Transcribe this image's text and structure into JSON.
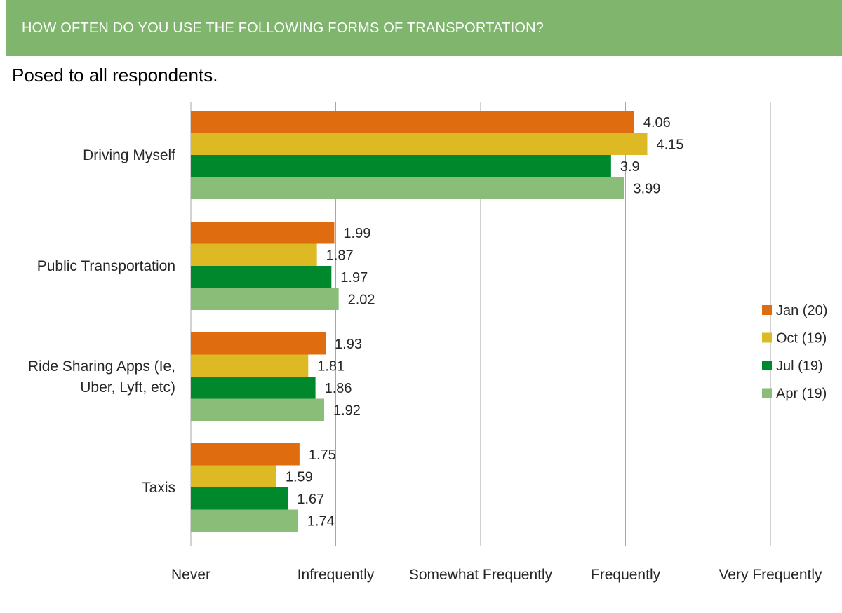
{
  "header": {
    "title": "HOW OFTEN DO YOU USE THE FOLLOWING FORMS OF TRANSPORTATION?",
    "subtitle": "Posed to all respondents."
  },
  "colors": {
    "banner": "#7fb56d",
    "gridline": "#a6a6a6"
  },
  "chart_data": {
    "type": "bar",
    "orientation": "horizontal",
    "categories": [
      [
        "Driving Myself"
      ],
      [
        "Public Transportation"
      ],
      [
        "Ride Sharing Apps (Ie,",
        "Uber, Lyft, etc)"
      ],
      [
        "Taxis"
      ]
    ],
    "series": [
      {
        "name": "Jan (20)",
        "color": "#e06c10",
        "values": [
          4.06,
          1.99,
          1.93,
          1.75
        ]
      },
      {
        "name": "Oct (19)",
        "color": "#ddb923",
        "values": [
          4.15,
          1.87,
          1.81,
          1.59
        ]
      },
      {
        "name": "Jul (19)",
        "color": "#00882d",
        "values": [
          3.9,
          1.97,
          1.86,
          1.67
        ]
      },
      {
        "name": "Apr (19)",
        "color": "#8abd78",
        "values": [
          3.99,
          2.02,
          1.92,
          1.74
        ]
      }
    ],
    "xlim": [
      1,
      5
    ],
    "x_ticks": [
      {
        "value": 1,
        "label": "Never"
      },
      {
        "value": 2,
        "label": "Infrequently"
      },
      {
        "value": 3,
        "label": "Somewhat Frequently"
      },
      {
        "value": 4,
        "label": "Frequently"
      },
      {
        "value": 5,
        "label": "Very Frequently"
      }
    ],
    "grid": "vertical",
    "legend": "right"
  }
}
